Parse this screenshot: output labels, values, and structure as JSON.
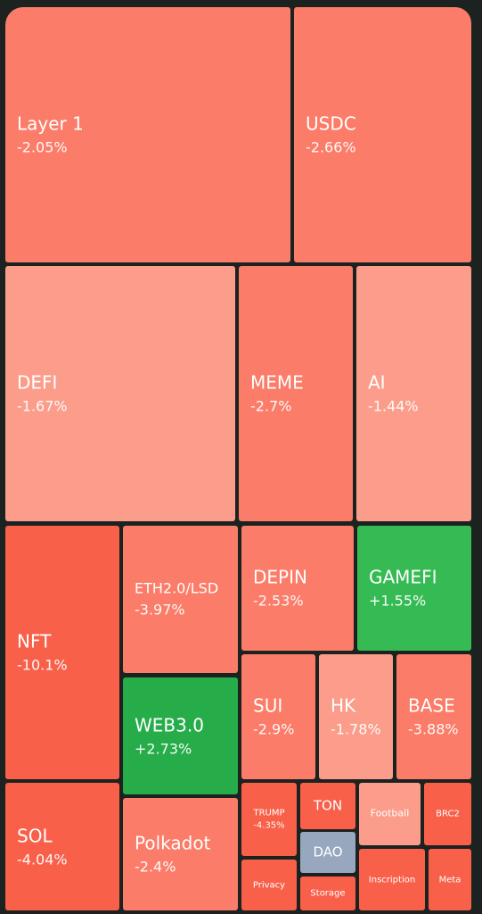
{
  "colors": {
    "background": "#1c2220",
    "down_strong": "#f8604a",
    "down_medium": "#fb7c68",
    "down_light": "#fb9d8a",
    "up_strong": "#26ad4a",
    "up_medium": "#36bb54",
    "neutral": "#96a7be"
  },
  "chart_data": {
    "type": "treemap",
    "tiles": [
      {
        "name": "Layer 1",
        "change": "-2.05%",
        "change_pct": -2.05
      },
      {
        "name": "USDC",
        "change": "-2.66%",
        "change_pct": -2.66
      },
      {
        "name": "DEFI",
        "change": "-1.67%",
        "change_pct": -1.67
      },
      {
        "name": "MEME",
        "change": "-2.7%",
        "change_pct": -2.7
      },
      {
        "name": "AI",
        "change": "-1.44%",
        "change_pct": -1.44
      },
      {
        "name": "NFT",
        "change": "-10.1%",
        "change_pct": -10.1
      },
      {
        "name": "ETH2.0/LSD",
        "change": "-3.97%",
        "change_pct": -3.97
      },
      {
        "name": "DEPIN",
        "change": "-2.53%",
        "change_pct": -2.53
      },
      {
        "name": "GAMEFI",
        "change": "+1.55%",
        "change_pct": 1.55
      },
      {
        "name": "WEB3.0",
        "change": "+2.73%",
        "change_pct": 2.73
      },
      {
        "name": "SUI",
        "change": "-2.9%",
        "change_pct": -2.9
      },
      {
        "name": "HK",
        "change": "-1.78%",
        "change_pct": -1.78
      },
      {
        "name": "BASE",
        "change": "-3.88%",
        "change_pct": -3.88
      },
      {
        "name": "SOL",
        "change": "-4.04%",
        "change_pct": -4.04
      },
      {
        "name": "Polkadot",
        "change": "-2.4%",
        "change_pct": -2.4
      },
      {
        "name": "TRUMP",
        "change": "-4.35%",
        "change_pct": -4.35
      },
      {
        "name": "TON",
        "change": ""
      },
      {
        "name": "Football",
        "change": ""
      },
      {
        "name": "BRC2",
        "change": ""
      },
      {
        "name": "DAO",
        "change": ""
      },
      {
        "name": "Privacy",
        "change": ""
      },
      {
        "name": "Storage",
        "change": ""
      },
      {
        "name": "Inscription",
        "change": ""
      },
      {
        "name": "Meta",
        "change": ""
      }
    ]
  }
}
